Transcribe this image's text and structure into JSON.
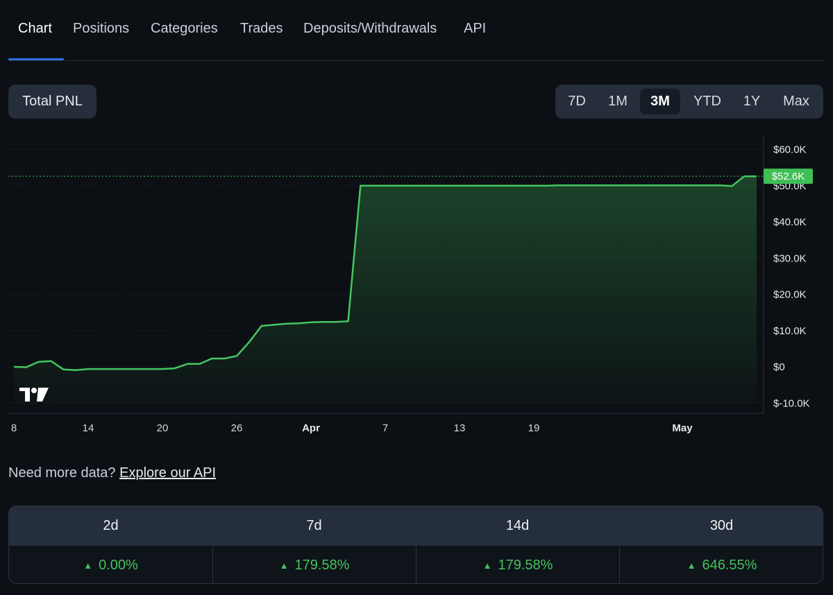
{
  "tabs": [
    {
      "label": "Chart",
      "active": true
    },
    {
      "label": "Positions"
    },
    {
      "label": "Categories"
    },
    {
      "label": "Trades"
    },
    {
      "label": "Deposits/Withdrawals"
    },
    {
      "label": "API"
    }
  ],
  "metric_button": "Total PNL",
  "ranges": [
    {
      "label": "7D"
    },
    {
      "label": "1M"
    },
    {
      "label": "3M",
      "active": true
    },
    {
      "label": "YTD"
    },
    {
      "label": "1Y"
    },
    {
      "label": "Max"
    }
  ],
  "colors": {
    "line": "#44c760",
    "accent_tab": "#2f6fe0",
    "positive": "#46c35a"
  },
  "chart_data": {
    "type": "area",
    "y_ticks": [
      "$60.0K",
      "$50.0K",
      "$40.0K",
      "$30.0K",
      "$20.0K",
      "$10.0K",
      "$0",
      "$-10.0K"
    ],
    "y_tick_values": [
      60000,
      50000,
      40000,
      30000,
      20000,
      10000,
      0,
      -10000
    ],
    "ylim": [
      -10000,
      60000
    ],
    "x_tick_labels": [
      "8",
      "14",
      "20",
      "26",
      "Apr",
      "7",
      "13",
      "19",
      "May"
    ],
    "x": [
      "Mar 8",
      "Mar 9",
      "Mar 10",
      "Mar 11",
      "Mar 12",
      "Mar 13",
      "Mar 14",
      "Mar 15",
      "Mar 16",
      "Mar 17",
      "Mar 18",
      "Mar 19",
      "Mar 20",
      "Mar 21",
      "Mar 22",
      "Mar 23",
      "Mar 24",
      "Mar 25",
      "Mar 26",
      "Mar 27",
      "Mar 28",
      "Mar 29",
      "Mar 30",
      "Mar 31",
      "Apr 1",
      "Apr 2",
      "Apr 3",
      "Apr 4",
      "Apr 5",
      "Apr 6",
      "Apr 7",
      "Apr 8",
      "Apr 9",
      "Apr 10",
      "Apr 11",
      "Apr 12",
      "Apr 13",
      "Apr 14",
      "Apr 15",
      "Apr 16",
      "Apr 17",
      "Apr 18",
      "Apr 19",
      "Apr 20",
      "Apr 21",
      "Apr 22",
      "Apr 23",
      "Apr 24",
      "Apr 25",
      "Apr 26",
      "Apr 27",
      "Apr 28",
      "Apr 29",
      "Apr 30",
      "May 1",
      "May 2",
      "May 3",
      "May 4",
      "May 5",
      "May 6",
      "May 7"
    ],
    "values": [
      0,
      -100,
      1400,
      1600,
      -700,
      -900,
      -600,
      -600,
      -600,
      -600,
      -600,
      -600,
      -600,
      -400,
      800,
      800,
      2300,
      2300,
      3000,
      6800,
      11300,
      11600,
      11900,
      12000,
      12300,
      12400,
      12400,
      12600,
      50000,
      50000,
      50000,
      50000,
      50000,
      50000,
      50000,
      50000,
      50000,
      50000,
      50000,
      50000,
      50000,
      50000,
      50000,
      50000,
      50100,
      50100,
      50100,
      50100,
      50100,
      50100,
      50100,
      50100,
      50100,
      50100,
      50100,
      50100,
      50100,
      50100,
      49900,
      52600,
      52600
    ],
    "last_value_label": "$52.6K"
  },
  "api_prompt": {
    "text": "Need more data?",
    "link": "Explore our API"
  },
  "stats": [
    {
      "period": "2d",
      "change": "0.00%"
    },
    {
      "period": "7d",
      "change": "179.58%"
    },
    {
      "period": "14d",
      "change": "179.58%"
    },
    {
      "period": "30d",
      "change": "646.55%"
    }
  ]
}
